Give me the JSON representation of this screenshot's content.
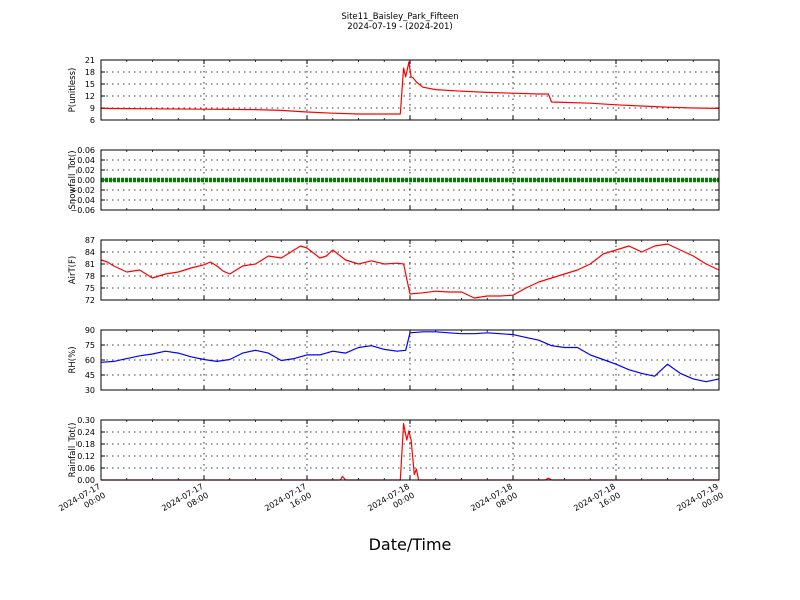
{
  "figure": {
    "title_line1": "Site11_Baisley_Park_Fifteen",
    "title_line2": "2024-07-19 - (2024-201)",
    "xlabel": "Date/Time",
    "x_ticks": [
      {
        "line1": "2024-07-17",
        "line2": "00:00"
      },
      {
        "line1": "2024-07-17",
        "line2": "08:00"
      },
      {
        "line1": "2024-07-17",
        "line2": "16:00"
      },
      {
        "line1": "2024-07-18",
        "line2": "00:00"
      },
      {
        "line1": "2024-07-18",
        "line2": "08:00"
      },
      {
        "line1": "2024-07-18",
        "line2": "16:00"
      },
      {
        "line1": "2024-07-19",
        "line2": "00:00"
      }
    ]
  },
  "chart_data": [
    {
      "type": "line",
      "ylabel": "P(unitless)",
      "ylim": [
        6,
        21
      ],
      "yticks": [
        "6",
        "9",
        "12",
        "15",
        "18",
        "21"
      ],
      "color": "#ff0000",
      "grid": true,
      "x_start": "2024-07-17 00:00",
      "x_end": "2024-07-19 00:00",
      "series": [
        {
          "x": [
            "2024-07-17 00:00",
            "2024-07-17 04:00",
            "2024-07-17 08:00",
            "2024-07-17 12:00",
            "2024-07-17 14:00",
            "2024-07-17 16:00",
            "2024-07-17 18:00",
            "2024-07-17 20:00",
            "2024-07-17 23:15",
            "2024-07-17 23:30",
            "2024-07-17 23:40",
            "2024-07-17 23:55",
            "2024-07-18 00:05",
            "2024-07-18 00:15",
            "2024-07-18 00:30",
            "2024-07-18 01:00",
            "2024-07-18 02:00",
            "2024-07-18 04:00",
            "2024-07-18 06:00",
            "2024-07-18 08:00",
            "2024-07-18 10:00",
            "2024-07-18 10:45",
            "2024-07-18 11:00",
            "2024-07-18 12:00",
            "2024-07-18 14:00",
            "2024-07-18 16:00",
            "2024-07-18 18:00",
            "2024-07-18 20:00",
            "2024-07-18 22:00",
            "2024-07-19 00:00"
          ],
          "values": [
            8.9,
            8.8,
            8.7,
            8.6,
            8.4,
            8.0,
            7.7,
            7.5,
            7.5,
            19.0,
            16.8,
            20.5,
            16.8,
            16.5,
            15.5,
            14.2,
            13.6,
            13.2,
            12.9,
            12.7,
            12.5,
            12.5,
            10.5,
            10.4,
            10.2,
            9.8,
            9.5,
            9.2,
            9.0,
            8.9
          ]
        }
      ]
    },
    {
      "type": "line",
      "ylabel": "Snowfall_Tot()",
      "ylim": [
        -0.06,
        0.06
      ],
      "yticks": [
        "−0.06",
        "−0.04",
        "−0.02",
        "0.00",
        "0.02",
        "0.04",
        "0.06"
      ],
      "color": "#008000",
      "grid": true,
      "x_start": "2024-07-17 00:00",
      "x_end": "2024-07-19 00:00",
      "series": [
        {
          "x": [
            "2024-07-17 00:00",
            "2024-07-19 00:00"
          ],
          "values": [
            0.0,
            0.0
          ]
        }
      ]
    },
    {
      "type": "line",
      "ylabel": "AirT(F)",
      "ylim": [
        72,
        87
      ],
      "yticks": [
        "72",
        "75",
        "78",
        "81",
        "84",
        "87"
      ],
      "color": "#ff0000",
      "grid": true,
      "x_start": "2024-07-17 00:00",
      "x_end": "2024-07-19 00:00",
      "series": [
        {
          "x": [
            "2024-07-17 00:00",
            "2024-07-17 00:30",
            "2024-07-17 01:00",
            "2024-07-17 02:00",
            "2024-07-17 03:00",
            "2024-07-17 04:00",
            "2024-07-17 05:00",
            "2024-07-17 06:00",
            "2024-07-17 07:00",
            "2024-07-17 08:00",
            "2024-07-17 08:30",
            "2024-07-17 09:00",
            "2024-07-17 09:30",
            "2024-07-17 10:00",
            "2024-07-17 11:00",
            "2024-07-17 12:00",
            "2024-07-17 13:00",
            "2024-07-17 14:00",
            "2024-07-17 15:00",
            "2024-07-17 15:30",
            "2024-07-17 16:00",
            "2024-07-17 17:00",
            "2024-07-17 17:30",
            "2024-07-17 18:00",
            "2024-07-17 19:00",
            "2024-07-17 20:00",
            "2024-07-17 21:00",
            "2024-07-17 22:00",
            "2024-07-17 23:00",
            "2024-07-17 23:30",
            "2024-07-18 00:00",
            "2024-07-18 01:00",
            "2024-07-18 02:00",
            "2024-07-18 03:00",
            "2024-07-18 04:00",
            "2024-07-18 05:00",
            "2024-07-18 06:00",
            "2024-07-18 07:00",
            "2024-07-18 08:00",
            "2024-07-18 09:00",
            "2024-07-18 10:00",
            "2024-07-18 11:00",
            "2024-07-18 12:00",
            "2024-07-18 13:00",
            "2024-07-18 14:00",
            "2024-07-18 15:00",
            "2024-07-18 16:00",
            "2024-07-18 17:00",
            "2024-07-18 18:00",
            "2024-07-18 19:00",
            "2024-07-18 20:00",
            "2024-07-18 21:00",
            "2024-07-18 22:00",
            "2024-07-18 23:00",
            "2024-07-19 00:00"
          ],
          "values": [
            82.0,
            81.5,
            80.5,
            79.0,
            79.5,
            77.5,
            78.5,
            79.0,
            80.0,
            80.8,
            81.5,
            80.5,
            79.2,
            78.5,
            80.5,
            81.0,
            83.0,
            82.5,
            84.5,
            85.5,
            85.0,
            82.5,
            83.0,
            84.5,
            82.0,
            81.0,
            81.8,
            81.0,
            81.2,
            81.0,
            73.5,
            73.8,
            74.2,
            74.0,
            74.0,
            72.5,
            73.0,
            73.0,
            73.2,
            75.0,
            76.5,
            77.5,
            78.5,
            79.5,
            81.0,
            83.5,
            84.5,
            85.5,
            84.0,
            85.5,
            86.0,
            84.5,
            83.0,
            81.0,
            79.5
          ]
        }
      ]
    },
    {
      "type": "line",
      "ylabel": "RH(%)",
      "ylim": [
        30,
        95
      ],
      "yticks": [
        "30",
        "45",
        "60",
        "75",
        "90"
      ],
      "color": "#0000ff",
      "grid": true,
      "x_start": "2024-07-17 00:00",
      "x_end": "2024-07-19 00:00",
      "series": [
        {
          "x": [
            "2024-07-17 00:00",
            "2024-07-17 01:00",
            "2024-07-17 02:00",
            "2024-07-17 03:00",
            "2024-07-17 04:00",
            "2024-07-17 05:00",
            "2024-07-17 06:00",
            "2024-07-17 07:00",
            "2024-07-17 08:00",
            "2024-07-17 09:00",
            "2024-07-17 10:00",
            "2024-07-17 11:00",
            "2024-07-17 12:00",
            "2024-07-17 13:00",
            "2024-07-17 14:00",
            "2024-07-17 15:00",
            "2024-07-17 16:00",
            "2024-07-17 17:00",
            "2024-07-17 18:00",
            "2024-07-17 19:00",
            "2024-07-17 20:00",
            "2024-07-17 21:00",
            "2024-07-17 22:00",
            "2024-07-17 23:00",
            "2024-07-17 23:40",
            "2024-07-18 00:00",
            "2024-07-18 01:00",
            "2024-07-18 02:00",
            "2024-07-18 03:00",
            "2024-07-18 04:00",
            "2024-07-18 05:00",
            "2024-07-18 06:00",
            "2024-07-18 07:00",
            "2024-07-18 08:00",
            "2024-07-18 09:00",
            "2024-07-18 10:00",
            "2024-07-18 11:00",
            "2024-07-18 12:00",
            "2024-07-18 13:00",
            "2024-07-18 14:00",
            "2024-07-18 15:00",
            "2024-07-18 16:00",
            "2024-07-18 17:00",
            "2024-07-18 18:00",
            "2024-07-18 19:00",
            "2024-07-18 20:00",
            "2024-07-18 21:00",
            "2024-07-18 22:00",
            "2024-07-18 23:00",
            "2024-07-19 00:00"
          ],
          "values": [
            60,
            61,
            64,
            67,
            69,
            72,
            70,
            66,
            63,
            61,
            63,
            70,
            73,
            70,
            62,
            64,
            68,
            68,
            72,
            70,
            76,
            78,
            74,
            72,
            73,
            92,
            93,
            93,
            92,
            91,
            91,
            92,
            91,
            90,
            87,
            84,
            78,
            76,
            76,
            68,
            63,
            58,
            52,
            48,
            45,
            58,
            48,
            42,
            39,
            42
          ]
        }
      ]
    },
    {
      "type": "line",
      "ylabel": "Rainfall_Tot()",
      "ylim": [
        0.0,
        0.33
      ],
      "yticks": [
        "0.00",
        "0.06",
        "0.12",
        "0.18",
        "0.24",
        "0.30"
      ],
      "color": "#ff0000",
      "grid": true,
      "x_start": "2024-07-17 00:00",
      "x_end": "2024-07-19 00:00",
      "series": [
        {
          "x": [
            "2024-07-17 00:00",
            "2024-07-17 18:35",
            "2024-07-17 18:45",
            "2024-07-17 19:00",
            "2024-07-17 23:15",
            "2024-07-17 23:30",
            "2024-07-17 23:45",
            "2024-07-17 23:55",
            "2024-07-18 00:05",
            "2024-07-18 00:20",
            "2024-07-18 00:30",
            "2024-07-18 00:40",
            "2024-07-18 01:00",
            "2024-07-18 10:30",
            "2024-07-18 10:45",
            "2024-07-18 11:00",
            "2024-07-19 00:00"
          ],
          "values": [
            0.0,
            0.0,
            0.02,
            0.0,
            0.0,
            0.31,
            0.22,
            0.27,
            0.22,
            0.03,
            0.06,
            0.0,
            0.0,
            0.0,
            0.01,
            0.0,
            0.0
          ]
        }
      ]
    }
  ]
}
